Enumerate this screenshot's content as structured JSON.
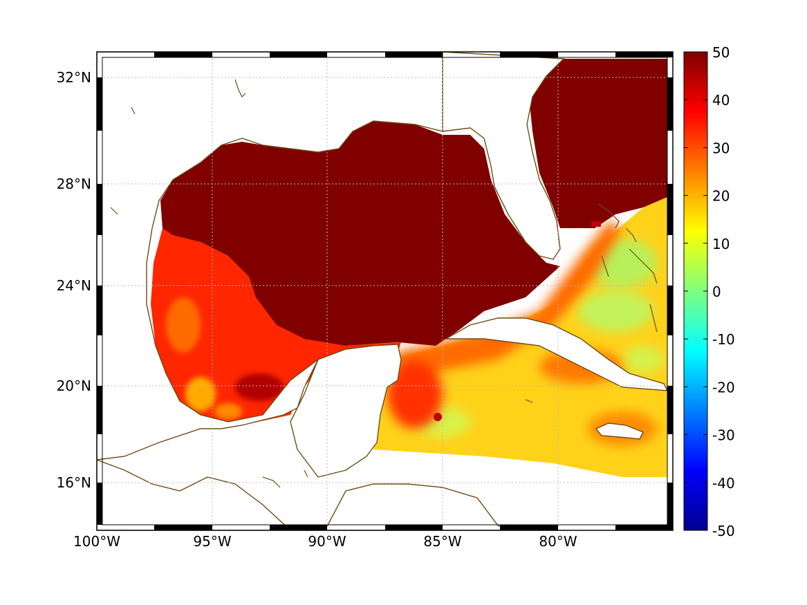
{
  "map": {
    "lon_range": [
      -100,
      -75
    ],
    "lat_range": [
      14,
      33
    ],
    "lon_ticks": [
      {
        "value": -100,
        "label": "100°W"
      },
      {
        "value": -95,
        "label": "95°W"
      },
      {
        "value": -90,
        "label": "90°W"
      },
      {
        "value": -85,
        "label": "85°W"
      },
      {
        "value": -80,
        "label": "80°W"
      }
    ],
    "lat_ticks": [
      {
        "value": 16,
        "label": "16°N"
      },
      {
        "value": 20,
        "label": "20°N"
      },
      {
        "value": 24,
        "label": "24°N"
      },
      {
        "value": 28,
        "label": "28°N"
      },
      {
        "value": 32,
        "label": "32°N"
      }
    ],
    "grid": "dotted",
    "coastline_color": "#6b4c12",
    "land_color": "#ffffff"
  },
  "colorbar": {
    "min": -50,
    "max": 50,
    "colormap": "jet",
    "ticks": [
      {
        "value": 50,
        "label": "50"
      },
      {
        "value": 40,
        "label": "40"
      },
      {
        "value": 30,
        "label": "30"
      },
      {
        "value": 20,
        "label": "20"
      },
      {
        "value": 10,
        "label": "10"
      },
      {
        "value": 0,
        "label": "0"
      },
      {
        "value": -10,
        "label": "-10"
      },
      {
        "value": -20,
        "label": "-20"
      },
      {
        "value": -30,
        "label": "-30"
      },
      {
        "value": -40,
        "label": "-40"
      },
      {
        "value": -50,
        "label": "-50"
      }
    ]
  },
  "field_regions": [
    {
      "name": "gulf-interior",
      "value": 50,
      "description_level": "saturated"
    },
    {
      "name": "atlantic-north",
      "value": 50,
      "description_level": "saturated"
    },
    {
      "name": "western-gulf-shelf",
      "value": 40
    },
    {
      "name": "bay-of-campeche",
      "value": 38
    },
    {
      "name": "campeche-eddy",
      "value": 48
    },
    {
      "name": "yucatan-channel",
      "value": 35
    },
    {
      "name": "caribbean",
      "value": 18
    },
    {
      "name": "bahamas",
      "value": 12
    },
    {
      "name": "florida-straits",
      "value": 30
    }
  ]
}
